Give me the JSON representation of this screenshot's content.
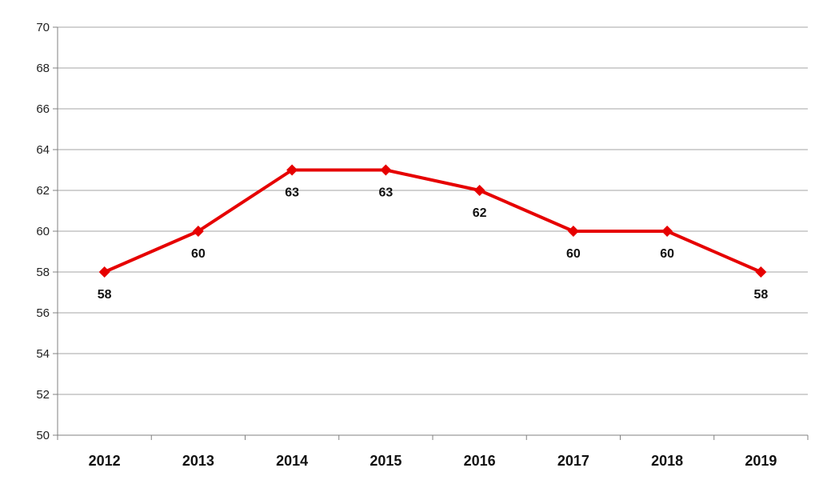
{
  "chart_data": {
    "type": "line",
    "categories": [
      "2012",
      "2013",
      "2014",
      "2015",
      "2016",
      "2017",
      "2018",
      "2019"
    ],
    "series": [
      {
        "values": [
          58,
          60,
          63,
          63,
          62,
          60,
          60,
          58
        ],
        "color": "#e60000",
        "marker": "diamond",
        "data_labels": [
          "58",
          "60",
          "63",
          "63",
          "62",
          "60",
          "60",
          "58"
        ]
      }
    ],
    "ylim": [
      50,
      70
    ],
    "y_ticks": [
      50,
      52,
      54,
      56,
      58,
      60,
      62,
      64,
      66,
      68,
      70
    ],
    "grid": true,
    "legend": false,
    "colors": {
      "gridline": "#a6a6a6",
      "axis": "#808080"
    }
  }
}
